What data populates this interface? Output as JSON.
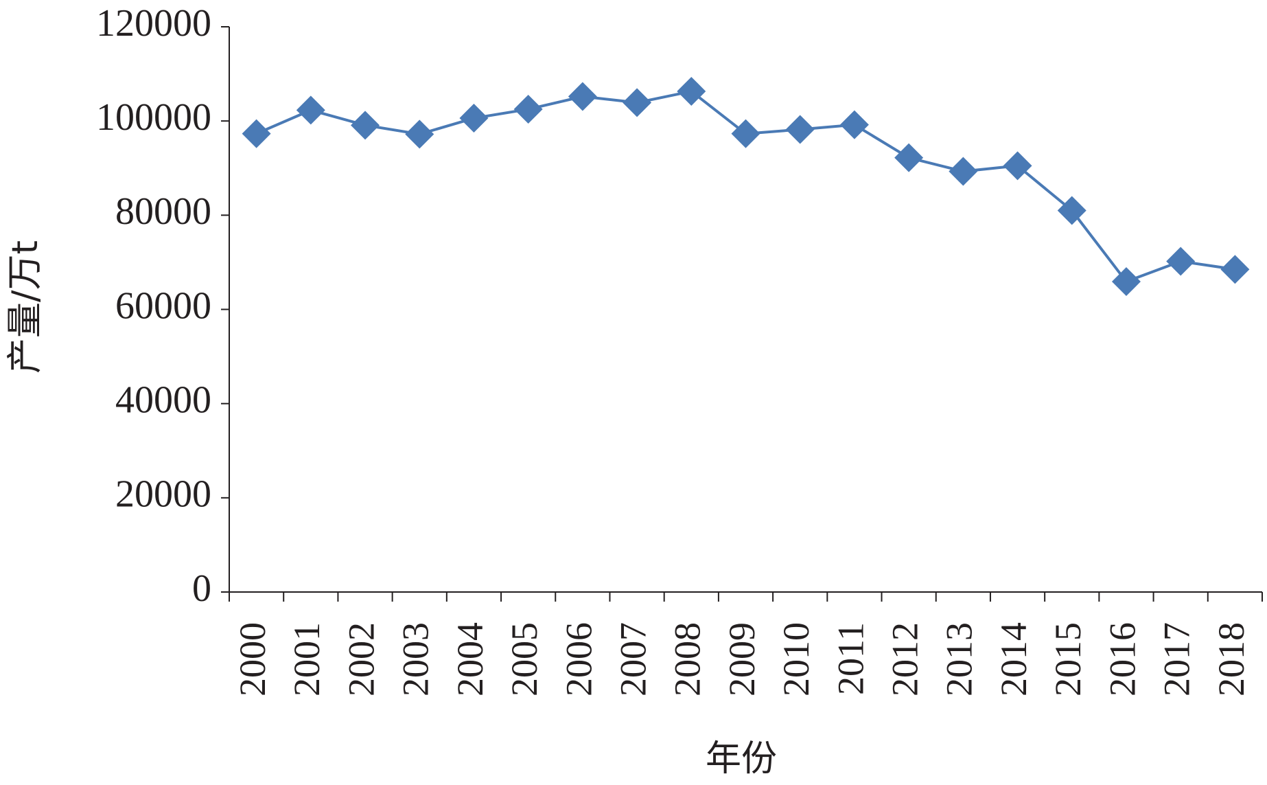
{
  "chart_data": {
    "type": "line",
    "x_label": "年份",
    "y_label": "产量/万t",
    "categories": [
      "2000",
      "2001",
      "2002",
      "2003",
      "2004",
      "2005",
      "2006",
      "2007",
      "2008",
      "2009",
      "2010",
      "2011",
      "2012",
      "2013",
      "2014",
      "2015",
      "2016",
      "2017",
      "2018"
    ],
    "series": [
      {
        "name": "产量",
        "color": "#4a7ab5",
        "values": [
          97300,
          102300,
          99100,
          97200,
          100600,
          102500,
          105200,
          103900,
          106300,
          97300,
          98200,
          99200,
          92200,
          89300,
          90500,
          81000,
          65900,
          70200,
          68500
        ]
      }
    ],
    "ylim": [
      0,
      120000
    ],
    "yticks": [
      0,
      20000,
      40000,
      60000,
      80000,
      100000,
      120000
    ],
    "grid": false,
    "legend": false
  }
}
